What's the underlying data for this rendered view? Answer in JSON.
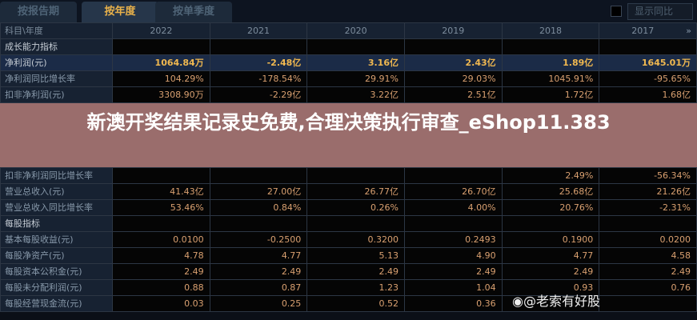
{
  "tabs": [
    "按报告期",
    "按年度",
    "按单季度"
  ],
  "show_yoy_label": "显示同比",
  "header": {
    "label": "科目\\年度",
    "years": [
      "2022",
      "2021",
      "2020",
      "2019",
      "2018",
      "2017"
    ],
    "more": "»"
  },
  "rows": [
    {
      "label": "成长能力指标",
      "type": "sec",
      "values": [
        "",
        "",
        "",
        "",
        "",
        ""
      ]
    },
    {
      "label": "净利润(元)",
      "type": "np",
      "values": [
        "1064.84万",
        "-2.48亿",
        "3.16亿",
        "2.43亿",
        "1.89亿",
        "1645.01万"
      ]
    },
    {
      "label": "净利润同比增长率",
      "type": "",
      "values": [
        "104.29%",
        "-178.54%",
        "29.91%",
        "29.03%",
        "1045.91%",
        "-95.65%"
      ]
    },
    {
      "label": "扣非净利润(元)",
      "type": "",
      "values": [
        "3308.90万",
        "-2.29亿",
        "3.22亿",
        "2.51亿",
        "1.72亿",
        "1.68亿"
      ]
    },
    {
      "label": "扣非净利润同比增长率",
      "type": "",
      "values": [
        "",
        "",
        "",
        "",
        "2.49%",
        "-56.34%"
      ]
    },
    {
      "label": "营业总收入(元)",
      "type": "",
      "values": [
        "41.43亿",
        "27.00亿",
        "26.77亿",
        "26.70亿",
        "25.68亿",
        "21.26亿"
      ]
    },
    {
      "label": "营业总收入同比增长率",
      "type": "",
      "values": [
        "53.46%",
        "0.84%",
        "0.26%",
        "4.00%",
        "20.76%",
        "-2.31%"
      ]
    },
    {
      "label": "每股指标",
      "type": "sec",
      "values": [
        "",
        "",
        "",
        "",
        "",
        ""
      ]
    },
    {
      "label": "基本每股收益(元)",
      "type": "",
      "values": [
        "0.0100",
        "-0.2500",
        "0.3200",
        "0.2493",
        "0.1900",
        "0.0200"
      ]
    },
    {
      "label": "每股净资产(元)",
      "type": "",
      "values": [
        "4.78",
        "4.77",
        "5.13",
        "4.90",
        "4.77",
        "4.58"
      ]
    },
    {
      "label": "每股资本公积金(元)",
      "type": "",
      "values": [
        "2.49",
        "2.49",
        "2.49",
        "2.49",
        "2.49",
        "2.49"
      ]
    },
    {
      "label": "每股未分配利润(元)",
      "type": "",
      "values": [
        "0.88",
        "0.87",
        "1.23",
        "1.04",
        "0.93",
        "0.76"
      ]
    },
    {
      "label": "每股经营现金流(元)",
      "type": "",
      "values": [
        "0.03",
        "0.25",
        "0.52",
        "0.36",
        "",
        ""
      ]
    }
  ],
  "overlay_title": "新澳开奖结果记录史免费,合理决策执行审查_eShop11.383",
  "watermark": "@老索有好股"
}
